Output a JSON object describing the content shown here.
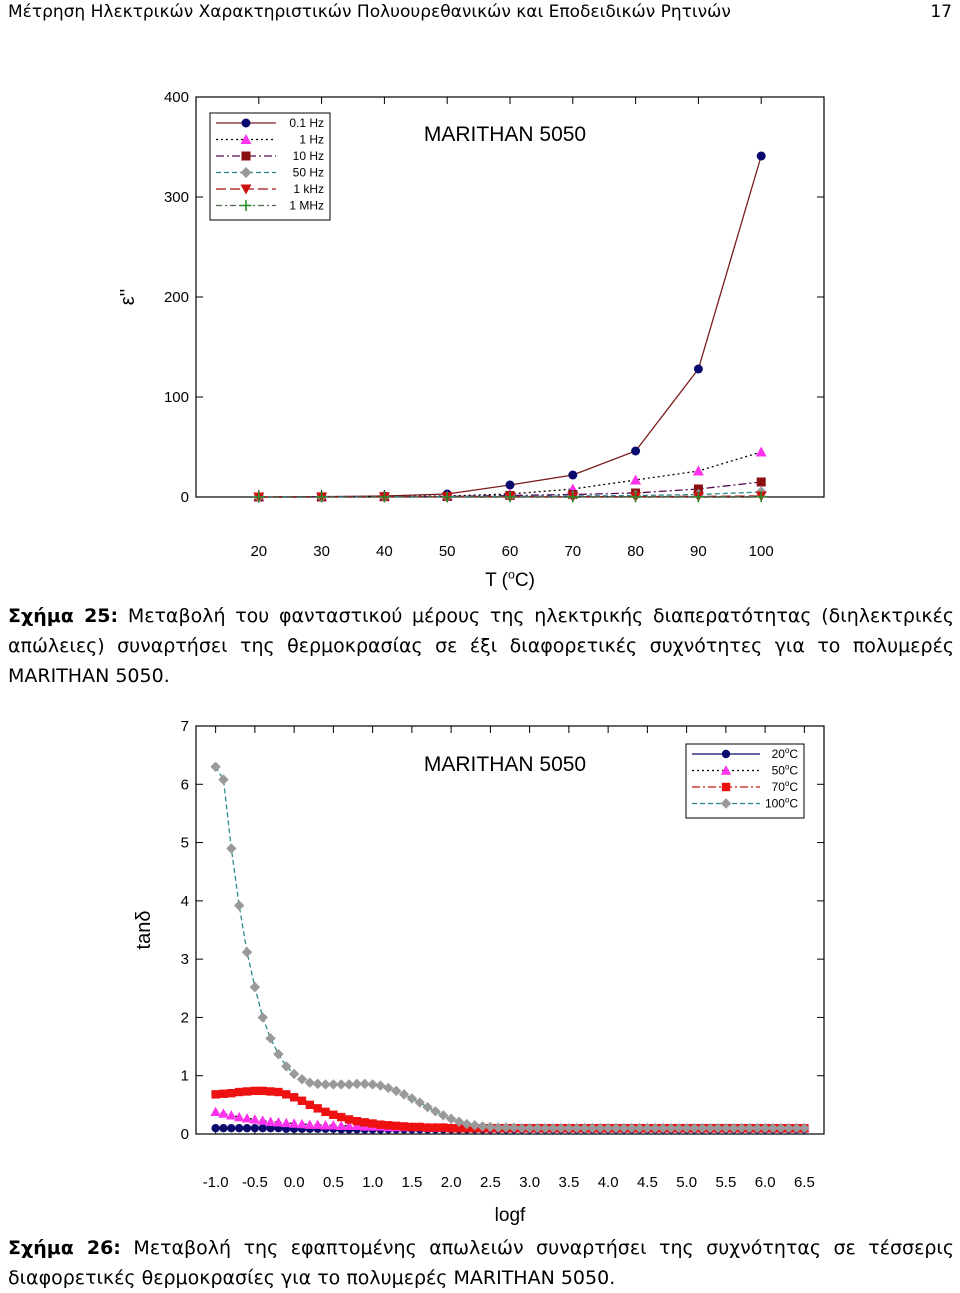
{
  "header": {
    "title": "Μέτρηση Ηλεκτρικών Χαρακτηριστικών Πολυουρεθανικών και Εποδειδικών Ρητινών",
    "page_number": "17"
  },
  "figure25": {
    "caption_label": "Σχήμα 25:",
    "caption_text": " Μεταβολή του φανταστικού μέρους της ηλεκτρικής διαπερατότητας (διηλεκτρικές απώλειες) συναρτήσει της θερμοκρασίας σε έξι διαφορετικές συχνότητες για το πολυμερές MARITHAN 5050."
  },
  "figure26": {
    "caption_label": "Σχήμα 26:",
    "caption_text": " Μεταβολή της εφαπτομένης απωλειών συναρτήσει της συχνότητας σε τέσσερις διαφορετικές θερμοκρασίες για το πολυμερές MARITHAN 5050."
  },
  "chart_data": [
    {
      "type": "line",
      "title": "MARITHAN 5050",
      "xlabel": "T (oC)",
      "ylabel": "ε''",
      "xlim": [
        10,
        110
      ],
      "ylim": [
        0,
        400
      ],
      "x_ticks": [
        "20",
        "30",
        "40",
        "50",
        "60",
        "70",
        "80",
        "90",
        "100"
      ],
      "y_ticks": [
        "0",
        "100",
        "200",
        "300",
        "400"
      ],
      "legend_position": "top-left",
      "x": [
        20,
        30,
        40,
        50,
        60,
        70,
        80,
        90,
        100
      ],
      "series": [
        {
          "name": "0.1 Hz",
          "color": "#7a1a1a",
          "marker": "circle",
          "marker_color": "#0a0a6e",
          "dash": "",
          "values": [
            0,
            0.3,
            1,
            3,
            12,
            22,
            46,
            128,
            341
          ]
        },
        {
          "name": "1 Hz",
          "color": "#000000",
          "marker": "triangle-up",
          "marker_color": "#ff33ee",
          "dash": "2,3",
          "values": [
            0,
            0.2,
            0.5,
            1,
            3,
            8,
            17,
            26,
            45
          ]
        },
        {
          "name": "10 Hz",
          "color": "#550a55",
          "marker": "square",
          "marker_color": "#8b0f0f",
          "dash": "8,3,2,3",
          "values": [
            0,
            0.1,
            0.3,
            0.5,
            1.5,
            2.5,
            4,
            8,
            15
          ]
        },
        {
          "name": "50 Hz",
          "color": "#2a8c8c",
          "marker": "diamond",
          "marker_color": "#999999",
          "dash": "5,3",
          "values": [
            0,
            0.1,
            0.2,
            0.3,
            0.6,
            1,
            1.5,
            2.5,
            5
          ]
        },
        {
          "name": "1 kHz",
          "color": "#a01010",
          "marker": "triangle-down",
          "marker_color": "#cc1111",
          "dash": "10,4",
          "values": [
            0,
            0,
            0.1,
            0.1,
            0.2,
            0.3,
            0.4,
            0.6,
            1
          ]
        },
        {
          "name": "1 MHz",
          "color": "#4a6a4a",
          "marker": "plus",
          "marker_color": "#2a8a2a",
          "dash": "6,3,2,3",
          "values": [
            0,
            0,
            0,
            0,
            0.1,
            0.1,
            0.1,
            0.2,
            0.3
          ]
        }
      ]
    },
    {
      "type": "line",
      "title": "MARITHAN 5050",
      "xlabel": "logf",
      "ylabel": "tanδ",
      "xlim": [
        -1.25,
        6.75
      ],
      "ylim": [
        0,
        7
      ],
      "x_ticks": [
        "-1.0",
        "-0.5",
        "0.0",
        "0.5",
        "1.0",
        "1.5",
        "2.0",
        "2.5",
        "3.0",
        "3.5",
        "4.0",
        "4.5",
        "5.0",
        "5.5",
        "6.0",
        "6.5"
      ],
      "y_ticks": [
        "0",
        "1",
        "2",
        "3",
        "4",
        "5",
        "6",
        "7"
      ],
      "legend_position": "top-right",
      "series": [
        {
          "name": "20oC",
          "color": "#0a0a6e",
          "marker": "circle",
          "marker_color": "#0a0a6e",
          "dash": "",
          "x_start": -1.0,
          "x_step": 0.1,
          "values": [
            0.1,
            0.1,
            0.1,
            0.1,
            0.1,
            0.1,
            0.1,
            0.1,
            0.1,
            0.09,
            0.09,
            0.09,
            0.09,
            0.09,
            0.09,
            0.09,
            0.08,
            0.08,
            0.08,
            0.08,
            0.08,
            0.08,
            0.08,
            0.08,
            0.08,
            0.08,
            0.08,
            0.08,
            0.08,
            0.08,
            0.08,
            0.08,
            0.08,
            0.08,
            0.08,
            0.08,
            0.08,
            0.08,
            0.08,
            0.08,
            0.08,
            0.08,
            0.08,
            0.08,
            0.08,
            0.08,
            0.08,
            0.08,
            0.08,
            0.08,
            0.08,
            0.08,
            0.08,
            0.08,
            0.08,
            0.08,
            0.08,
            0.08,
            0.08,
            0.08,
            0.08,
            0.08,
            0.08,
            0.08,
            0.08,
            0.08,
            0.08,
            0.08,
            0.08,
            0.08,
            0.08,
            0.08,
            0.08,
            0.08,
            0.08,
            0.08
          ]
        },
        {
          "name": "50oC",
          "color": "#000000",
          "marker": "triangle-up",
          "marker_color": "#ff33ee",
          "dash": "2,3",
          "x_start": -1.0,
          "x_step": 0.1,
          "values": [
            0.38,
            0.35,
            0.32,
            0.29,
            0.27,
            0.25,
            0.23,
            0.21,
            0.2,
            0.19,
            0.18,
            0.17,
            0.16,
            0.16,
            0.15,
            0.15,
            0.14,
            0.14,
            0.14,
            0.13,
            0.13,
            0.13,
            0.12,
            0.12,
            0.12,
            0.12,
            0.12,
            0.11,
            0.11,
            0.11,
            0.11,
            0.11,
            0.11,
            0.11,
            0.11,
            0.1,
            0.1,
            0.1,
            0.1,
            0.1,
            0.1,
            0.1,
            0.1,
            0.1,
            0.1,
            0.1,
            0.1,
            0.1,
            0.1,
            0.1,
            0.1,
            0.1,
            0.1,
            0.1,
            0.1,
            0.1,
            0.1,
            0.1,
            0.1,
            0.1,
            0.1,
            0.1,
            0.1,
            0.1,
            0.1,
            0.1,
            0.1,
            0.1,
            0.1,
            0.1,
            0.1,
            0.1,
            0.1,
            0.1,
            0.1,
            0.1
          ]
        },
        {
          "name": "70oC",
          "color": "#cc1111",
          "marker": "square",
          "marker_color": "#ee1111",
          "dash": "8,3,2,3",
          "x_start": -1.0,
          "x_step": 0.1,
          "values": [
            0.68,
            0.69,
            0.7,
            0.72,
            0.73,
            0.74,
            0.74,
            0.73,
            0.72,
            0.68,
            0.63,
            0.57,
            0.5,
            0.44,
            0.38,
            0.33,
            0.29,
            0.25,
            0.22,
            0.2,
            0.18,
            0.16,
            0.15,
            0.14,
            0.13,
            0.12,
            0.12,
            0.11,
            0.11,
            0.11,
            0.1,
            0.1,
            0.1,
            0.1,
            0.1,
            0.1,
            0.1,
            0.1,
            0.1,
            0.1,
            0.1,
            0.1,
            0.1,
            0.1,
            0.1,
            0.1,
            0.1,
            0.1,
            0.1,
            0.1,
            0.1,
            0.1,
            0.1,
            0.1,
            0.1,
            0.1,
            0.1,
            0.1,
            0.1,
            0.1,
            0.1,
            0.1,
            0.1,
            0.1,
            0.1,
            0.1,
            0.1,
            0.1,
            0.1,
            0.1,
            0.1,
            0.1,
            0.1,
            0.1,
            0.1,
            0.1
          ]
        },
        {
          "name": "100oC",
          "color": "#2a8c8c",
          "marker": "diamond",
          "marker_color": "#999999",
          "dash": "5,3",
          "x_start": -1.0,
          "x_step": 0.1,
          "values": [
            6.3,
            6.08,
            4.9,
            3.92,
            3.12,
            2.52,
            2.0,
            1.64,
            1.37,
            1.16,
            1.03,
            0.94,
            0.88,
            0.86,
            0.85,
            0.85,
            0.85,
            0.85,
            0.86,
            0.86,
            0.85,
            0.83,
            0.79,
            0.74,
            0.68,
            0.61,
            0.54,
            0.46,
            0.39,
            0.32,
            0.26,
            0.21,
            0.17,
            0.15,
            0.13,
            0.12,
            0.11,
            0.11,
            0.11,
            0.1,
            0.1,
            0.1,
            0.1,
            0.1,
            0.1,
            0.1,
            0.1,
            0.1,
            0.1,
            0.1,
            0.1,
            0.1,
            0.1,
            0.1,
            0.1,
            0.1,
            0.1,
            0.1,
            0.1,
            0.1,
            0.1,
            0.1,
            0.1,
            0.1,
            0.1,
            0.1,
            0.1,
            0.1,
            0.1,
            0.1,
            0.1,
            0.1,
            0.1,
            0.1,
            0.1,
            0.1
          ]
        }
      ]
    }
  ]
}
